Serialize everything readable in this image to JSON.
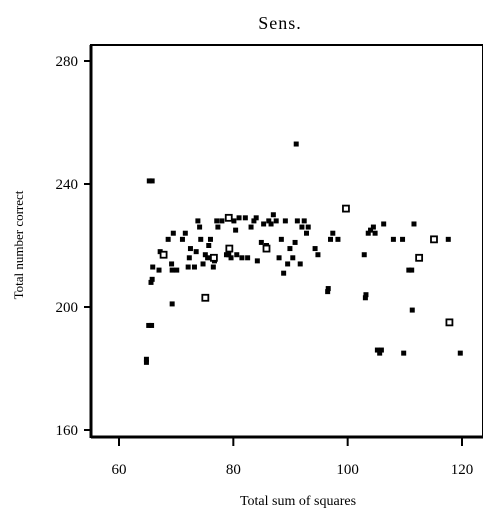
{
  "chart_data": {
    "type": "scatter",
    "title": "Sens.",
    "xlabel": "Total sum of squares",
    "ylabel": "Total number correct",
    "xlim": [
      55,
      125
    ],
    "ylim": [
      155,
      285
    ],
    "x_ticks": [
      60,
      80,
      100,
      120
    ],
    "y_ticks": [
      160,
      200,
      240,
      280
    ],
    "grid": false,
    "legend": "none",
    "colors": {
      "marker": "#000000",
      "axis": "#000000",
      "background": "#ffffff"
    },
    "series": [
      {
        "marker": "filled-square",
        "points": [
          [
            64.8,
            183
          ],
          [
            64.8,
            182
          ],
          [
            65.2,
            194
          ],
          [
            65.7,
            194
          ],
          [
            65.3,
            241
          ],
          [
            65.8,
            241
          ],
          [
            65.6,
            208
          ],
          [
            65.8,
            209
          ],
          [
            65.9,
            213
          ],
          [
            67.0,
            212
          ],
          [
            67.2,
            218
          ],
          [
            68.0,
            217
          ],
          [
            68.6,
            222
          ],
          [
            69.2,
            214
          ],
          [
            69.3,
            212
          ],
          [
            69.3,
            201
          ],
          [
            69.5,
            224
          ],
          [
            70.1,
            212
          ],
          [
            71.1,
            222
          ],
          [
            71.6,
            224
          ],
          [
            72.1,
            213
          ],
          [
            72.3,
            216
          ],
          [
            72.5,
            219
          ],
          [
            73.2,
            213
          ],
          [
            73.5,
            218
          ],
          [
            73.8,
            228
          ],
          [
            74.1,
            226
          ],
          [
            74.3,
            222
          ],
          [
            74.7,
            214
          ],
          [
            75.1,
            217
          ],
          [
            75.5,
            216
          ],
          [
            75.7,
            220
          ],
          [
            76.0,
            222
          ],
          [
            76.5,
            213
          ],
          [
            76.7,
            215
          ],
          [
            77.1,
            228
          ],
          [
            77.3,
            226
          ],
          [
            78.0,
            228
          ],
          [
            78.8,
            217
          ],
          [
            79.2,
            217
          ],
          [
            79.6,
            216
          ],
          [
            80.1,
            228
          ],
          [
            80.4,
            225
          ],
          [
            80.6,
            217
          ],
          [
            81.0,
            229
          ],
          [
            81.5,
            216
          ],
          [
            82.1,
            229
          ],
          [
            82.5,
            216
          ],
          [
            83.1,
            226
          ],
          [
            83.6,
            228
          ],
          [
            84.0,
            229
          ],
          [
            84.2,
            215
          ],
          [
            84.9,
            221
          ],
          [
            85.3,
            227
          ],
          [
            85.8,
            220
          ],
          [
            86.2,
            228
          ],
          [
            86.6,
            227
          ],
          [
            87.0,
            230
          ],
          [
            87.5,
            228
          ],
          [
            88.0,
            216
          ],
          [
            88.4,
            222
          ],
          [
            88.8,
            211
          ],
          [
            89.1,
            228
          ],
          [
            89.5,
            214
          ],
          [
            89.9,
            219
          ],
          [
            90.4,
            216
          ],
          [
            90.8,
            221
          ],
          [
            91.0,
            253
          ],
          [
            91.2,
            228
          ],
          [
            91.7,
            214
          ],
          [
            92.0,
            226
          ],
          [
            92.4,
            228
          ],
          [
            92.8,
            224
          ],
          [
            93.1,
            226
          ],
          [
            94.3,
            219
          ],
          [
            94.8,
            217
          ],
          [
            96.5,
            205
          ],
          [
            96.6,
            206
          ],
          [
            97.0,
            222
          ],
          [
            97.4,
            224
          ],
          [
            98.3,
            222
          ],
          [
            102.9,
            217
          ],
          [
            103.1,
            203
          ],
          [
            103.2,
            204
          ],
          [
            103.6,
            224
          ],
          [
            104.0,
            225
          ],
          [
            104.5,
            226
          ],
          [
            104.8,
            224
          ],
          [
            105.2,
            186
          ],
          [
            105.6,
            185
          ],
          [
            105.9,
            186
          ],
          [
            106.3,
            227
          ],
          [
            108.0,
            222
          ],
          [
            109.6,
            222
          ],
          [
            109.8,
            185
          ],
          [
            110.7,
            212
          ],
          [
            111.2,
            212
          ],
          [
            111.3,
            199
          ],
          [
            111.6,
            227
          ],
          [
            117.6,
            222
          ],
          [
            119.7,
            185
          ]
        ]
      },
      {
        "marker": "open-square",
        "points": [
          [
            67.8,
            217
          ],
          [
            75.1,
            203
          ],
          [
            76.6,
            216
          ],
          [
            79.2,
            229
          ],
          [
            79.3,
            219
          ],
          [
            85.8,
            219
          ],
          [
            99.7,
            232
          ],
          [
            115.1,
            222
          ],
          [
            112.5,
            216
          ],
          [
            117.8,
            195
          ]
        ]
      }
    ]
  }
}
